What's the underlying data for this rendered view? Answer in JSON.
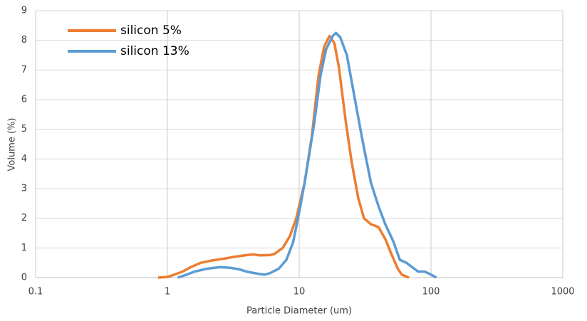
{
  "chart_data": {
    "type": "line",
    "x_label": "Particle  Diameter (um)",
    "y_label": "Volume (%)",
    "xlog": true,
    "grid": true,
    "legend": "top-left",
    "xlim": [
      0.1,
      1000
    ],
    "xticks": [
      0.1,
      1,
      10,
      100,
      1000
    ],
    "ylim": [
      0,
      9
    ],
    "yticks": [
      0,
      1,
      2,
      3,
      4,
      5,
      6,
      7,
      8,
      9
    ],
    "series": [
      {
        "name": "silicon 5%",
        "color": "#ed7d31",
        "x": [
          0.85,
          1.0,
          1.1,
          1.3,
          1.5,
          1.8,
          2.2,
          2.8,
          3.2,
          4,
          4.5,
          5,
          6,
          6.5,
          7.5,
          8.5,
          9.5,
          11,
          12.5,
          14,
          15.5,
          17,
          18.5,
          20,
          22.5,
          25,
          28,
          31,
          35,
          40,
          45,
          50,
          56,
          60,
          68
        ],
        "values": [
          0,
          0.02,
          0.08,
          0.2,
          0.35,
          0.5,
          0.58,
          0.65,
          0.7,
          0.76,
          0.78,
          0.75,
          0.76,
          0.8,
          1.0,
          1.4,
          2.0,
          3.2,
          4.8,
          6.8,
          7.8,
          8.15,
          7.9,
          7.1,
          5.3,
          3.9,
          2.7,
          2.0,
          1.8,
          1.7,
          1.3,
          0.8,
          0.3,
          0.1,
          0
        ]
      },
      {
        "name": "silicon 13%",
        "color": "#5b9bd5",
        "x": [
          1.2,
          1.4,
          1.6,
          2,
          2.5,
          3,
          3.5,
          4,
          5,
          5.5,
          6,
          7,
          8,
          9,
          10,
          11,
          13,
          14.5,
          16,
          18,
          19,
          20.5,
          23,
          26,
          30,
          35,
          40,
          45,
          52,
          58,
          65,
          72,
          80,
          90,
          100,
          110
        ],
        "values": [
          0,
          0.1,
          0.2,
          0.3,
          0.35,
          0.33,
          0.28,
          0.2,
          0.12,
          0.1,
          0.15,
          0.3,
          0.6,
          1.2,
          2.2,
          3.2,
          5.2,
          6.8,
          7.7,
          8.15,
          8.25,
          8.1,
          7.5,
          6.2,
          4.7,
          3.2,
          2.4,
          1.8,
          1.2,
          0.6,
          0.5,
          0.35,
          0.2,
          0.2,
          0.1,
          0
        ]
      }
    ]
  }
}
